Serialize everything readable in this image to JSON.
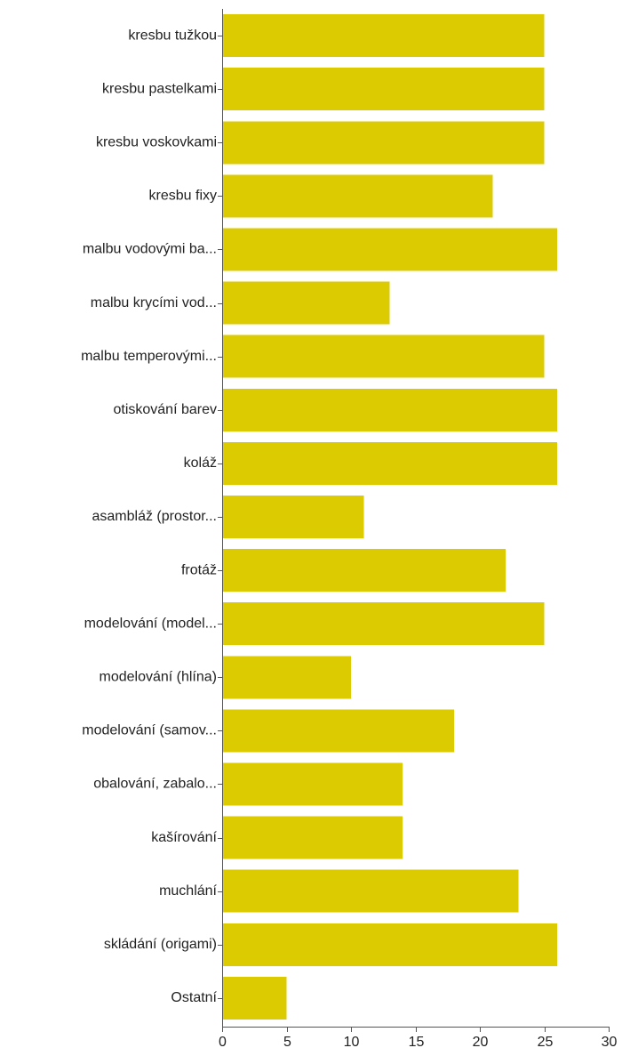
{
  "chart_data": {
    "type": "bar",
    "orientation": "horizontal",
    "categories": [
      "kresbu tužkou",
      "kresbu pastelkami",
      "kresbu voskovkami",
      "kresbu fixy",
      "malbu vodovými ba...",
      "malbu krycími vod...",
      "malbu temperovými...",
      "otiskování barev",
      "koláž",
      "asambláž (prostor...",
      "frotáž",
      "modelování (model...",
      "modelování (hlína)",
      "modelování (samov...",
      "obalování, zabalo...",
      "kašírování",
      "muchlání",
      "skládání (origami)",
      "Ostatní"
    ],
    "values": [
      25,
      25,
      25,
      21,
      26,
      13,
      25,
      26,
      26,
      11,
      22,
      25,
      10,
      18,
      14,
      14,
      23,
      26,
      5
    ],
    "xlim": [
      0,
      30
    ],
    "xticks": [
      "0",
      "5",
      "10",
      "15",
      "20",
      "25",
      "30"
    ],
    "bar_color": "#dccb00",
    "grid": false,
    "title": "",
    "xlabel": "",
    "ylabel": ""
  }
}
